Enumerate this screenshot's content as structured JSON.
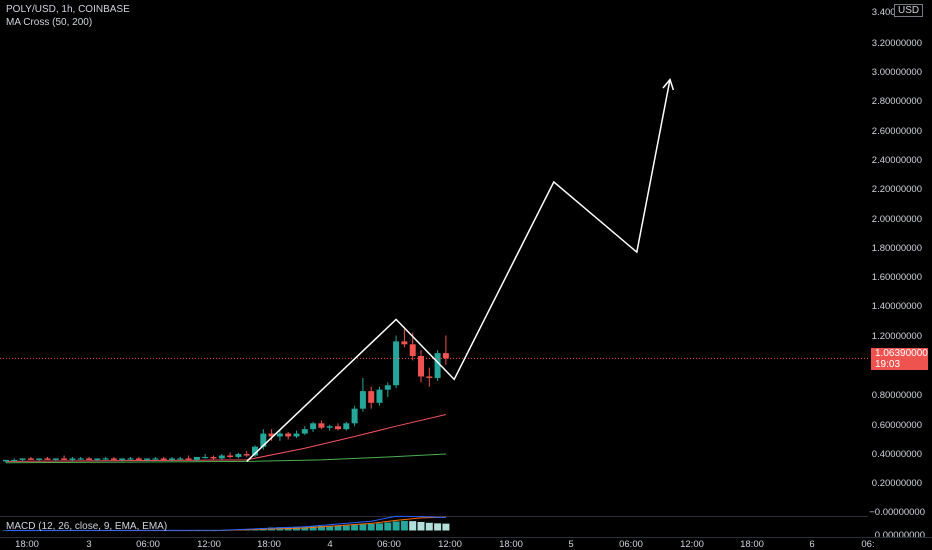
{
  "legend": {
    "symbol_line": "POLY/USD, 1h, COINBASE",
    "ma_line": "MA Cross (50, 200)",
    "macd_line": "MACD (12, 26, close, 9, EMA, EMA)"
  },
  "price_axis": {
    "currency": "USD",
    "ticks": [
      "3.40000000",
      "3.20000000",
      "3.00000000",
      "2.80000000",
      "2.60000000",
      "2.40000000",
      "2.20000000",
      "2.00000000",
      "1.80000000",
      "1.60000000",
      "1.40000000",
      "1.20000000",
      "0.80000000",
      "0.60000000",
      "0.40000000",
      "0.20000000"
    ],
    "last_price_label": "1.06390000",
    "countdown_label": "19:03",
    "macd_ticks": [
      "−0.00000000",
      "0.00000000"
    ]
  },
  "time_axis": {
    "ticks": [
      "18:00",
      "3",
      "06:00",
      "12:00",
      "18:00",
      "4",
      "06:00",
      "12:00",
      "18:00",
      "5",
      "06:00",
      "12:00",
      "18:00",
      "6",
      "06:"
    ]
  },
  "colors": {
    "up": "#26a69a",
    "down": "#ef5350",
    "ma_fast": "#f7525f",
    "ma_slow": "#4caf50",
    "drawing": "#ffffff",
    "last_price_line": "#ef5350",
    "macd_line": "#2962ff",
    "signal_line": "#ff6d00"
  },
  "chart_data": {
    "type": "candlestick",
    "symbol": "POLY/USD",
    "interval": "1h",
    "exchange": "COINBASE",
    "ylim": [
      0.0,
      3.4
    ],
    "last_price": 1.0639,
    "candles": [
      {
        "o": 0.36,
        "h": 0.37,
        "l": 0.35,
        "c": 0.37
      },
      {
        "o": 0.37,
        "h": 0.38,
        "l": 0.36,
        "c": 0.37
      },
      {
        "o": 0.37,
        "h": 0.38,
        "l": 0.36,
        "c": 0.38
      },
      {
        "o": 0.38,
        "h": 0.39,
        "l": 0.37,
        "c": 0.37
      },
      {
        "o": 0.37,
        "h": 0.38,
        "l": 0.36,
        "c": 0.38
      },
      {
        "o": 0.38,
        "h": 0.39,
        "l": 0.37,
        "c": 0.37
      },
      {
        "o": 0.37,
        "h": 0.38,
        "l": 0.36,
        "c": 0.38
      },
      {
        "o": 0.38,
        "h": 0.4,
        "l": 0.37,
        "c": 0.37
      },
      {
        "o": 0.37,
        "h": 0.39,
        "l": 0.36,
        "c": 0.38
      },
      {
        "o": 0.38,
        "h": 0.39,
        "l": 0.37,
        "c": 0.38
      },
      {
        "o": 0.38,
        "h": 0.39,
        "l": 0.37,
        "c": 0.37
      },
      {
        "o": 0.37,
        "h": 0.38,
        "l": 0.36,
        "c": 0.38
      },
      {
        "o": 0.38,
        "h": 0.39,
        "l": 0.37,
        "c": 0.38
      },
      {
        "o": 0.38,
        "h": 0.39,
        "l": 0.37,
        "c": 0.37
      },
      {
        "o": 0.37,
        "h": 0.38,
        "l": 0.36,
        "c": 0.38
      },
      {
        "o": 0.38,
        "h": 0.39,
        "l": 0.37,
        "c": 0.38
      },
      {
        "o": 0.38,
        "h": 0.39,
        "l": 0.37,
        "c": 0.37
      },
      {
        "o": 0.37,
        "h": 0.38,
        "l": 0.36,
        "c": 0.38
      },
      {
        "o": 0.38,
        "h": 0.39,
        "l": 0.37,
        "c": 0.38
      },
      {
        "o": 0.38,
        "h": 0.39,
        "l": 0.37,
        "c": 0.37
      },
      {
        "o": 0.37,
        "h": 0.39,
        "l": 0.36,
        "c": 0.38
      },
      {
        "o": 0.38,
        "h": 0.39,
        "l": 0.37,
        "c": 0.38
      },
      {
        "o": 0.38,
        "h": 0.4,
        "l": 0.37,
        "c": 0.37
      },
      {
        "o": 0.37,
        "h": 0.39,
        "l": 0.36,
        "c": 0.39
      },
      {
        "o": 0.39,
        "h": 0.41,
        "l": 0.38,
        "c": 0.39
      },
      {
        "o": 0.39,
        "h": 0.4,
        "l": 0.37,
        "c": 0.38
      },
      {
        "o": 0.38,
        "h": 0.41,
        "l": 0.37,
        "c": 0.4
      },
      {
        "o": 0.4,
        "h": 0.42,
        "l": 0.38,
        "c": 0.39
      },
      {
        "o": 0.39,
        "h": 0.42,
        "l": 0.38,
        "c": 0.41
      },
      {
        "o": 0.41,
        "h": 0.43,
        "l": 0.39,
        "c": 0.4
      },
      {
        "o": 0.4,
        "h": 0.47,
        "l": 0.39,
        "c": 0.46
      },
      {
        "o": 0.46,
        "h": 0.58,
        "l": 0.44,
        "c": 0.55
      },
      {
        "o": 0.55,
        "h": 0.58,
        "l": 0.5,
        "c": 0.53
      },
      {
        "o": 0.53,
        "h": 0.58,
        "l": 0.5,
        "c": 0.55
      },
      {
        "o": 0.55,
        "h": 0.56,
        "l": 0.51,
        "c": 0.53
      },
      {
        "o": 0.53,
        "h": 0.57,
        "l": 0.52,
        "c": 0.55
      },
      {
        "o": 0.55,
        "h": 0.6,
        "l": 0.54,
        "c": 0.58
      },
      {
        "o": 0.58,
        "h": 0.63,
        "l": 0.56,
        "c": 0.62
      },
      {
        "o": 0.62,
        "h": 0.64,
        "l": 0.58,
        "c": 0.59
      },
      {
        "o": 0.59,
        "h": 0.61,
        "l": 0.57,
        "c": 0.6
      },
      {
        "o": 0.6,
        "h": 0.62,
        "l": 0.57,
        "c": 0.58
      },
      {
        "o": 0.58,
        "h": 0.63,
        "l": 0.57,
        "c": 0.62
      },
      {
        "o": 0.62,
        "h": 0.74,
        "l": 0.6,
        "c": 0.72
      },
      {
        "o": 0.72,
        "h": 0.93,
        "l": 0.7,
        "c": 0.84
      },
      {
        "o": 0.84,
        "h": 0.87,
        "l": 0.72,
        "c": 0.76
      },
      {
        "o": 0.76,
        "h": 0.87,
        "l": 0.74,
        "c": 0.85
      },
      {
        "o": 0.85,
        "h": 0.9,
        "l": 0.8,
        "c": 0.88
      },
      {
        "o": 0.88,
        "h": 1.22,
        "l": 0.86,
        "c": 1.18
      },
      {
        "o": 1.18,
        "h": 1.28,
        "l": 1.14,
        "c": 1.16
      },
      {
        "o": 1.16,
        "h": 1.24,
        "l": 1.05,
        "c": 1.08
      },
      {
        "o": 1.08,
        "h": 1.12,
        "l": 0.9,
        "c": 0.94
      },
      {
        "o": 0.94,
        "h": 1.0,
        "l": 0.87,
        "c": 0.93
      },
      {
        "o": 0.93,
        "h": 1.12,
        "l": 0.91,
        "c": 1.1
      },
      {
        "o": 1.1,
        "h": 1.22,
        "l": 1.02,
        "c": 1.0639
      }
    ],
    "ma_fast_line": [
      [
        0,
        0.36
      ],
      [
        29,
        0.37
      ],
      [
        36,
        0.45
      ],
      [
        42,
        0.53
      ],
      [
        47,
        0.6
      ],
      [
        53,
        0.68
      ]
    ],
    "ma_slow_line": [
      [
        0,
        0.35
      ],
      [
        29,
        0.36
      ],
      [
        38,
        0.37
      ],
      [
        46,
        0.39
      ],
      [
        53,
        0.41
      ]
    ],
    "projection_drawing": {
      "points": [
        [
          29,
          0.36
        ],
        [
          47,
          1.33
        ],
        [
          54,
          0.92
        ],
        [
          66,
          2.27
        ],
        [
          76,
          1.79
        ],
        [
          80,
          2.97
        ]
      ],
      "arrow_end": true
    },
    "macd": {
      "histogram": [
        0,
        0,
        0,
        0,
        0,
        0,
        0,
        0,
        0,
        0,
        0,
        0,
        0,
        0,
        0,
        0,
        0,
        0,
        0,
        0,
        0,
        0,
        0,
        0,
        0,
        0,
        0.05,
        0.1,
        0.15,
        0.2,
        0.3,
        0.45,
        0.55,
        0.6,
        0.62,
        0.66,
        0.7,
        0.78,
        0.82,
        0.84,
        0.86,
        0.9,
        1.0,
        1.15,
        1.2,
        1.3,
        1.45,
        1.65,
        1.75,
        1.7,
        1.55,
        1.4,
        1.3,
        1.25
      ],
      "macd_line": [
        [
          0,
          0
        ],
        [
          26,
          0.05
        ],
        [
          36,
          0.9
        ],
        [
          44,
          2.2
        ],
        [
          47,
          3.4
        ],
        [
          50,
          3.3
        ],
        [
          53,
          3.1
        ]
      ],
      "signal_line": [
        [
          0,
          0
        ],
        [
          26,
          0.03
        ],
        [
          36,
          0.6
        ],
        [
          44,
          1.7
        ],
        [
          47,
          2.4
        ],
        [
          50,
          3.0
        ],
        [
          53,
          3.2
        ]
      ]
    }
  }
}
